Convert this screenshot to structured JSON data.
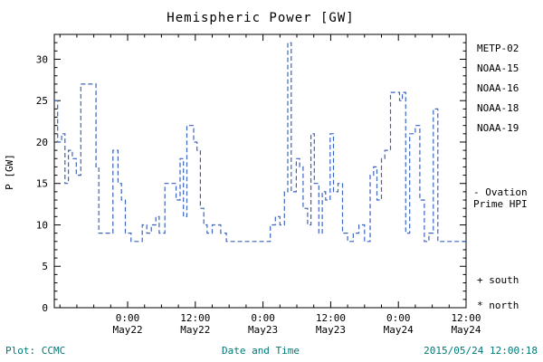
{
  "title": "Hemispheric Power [GW]",
  "footer": {
    "left": "Plot: CCMC",
    "right": "2015/05/24 12:00:18"
  },
  "chart_data": {
    "type": "line",
    "step": "after",
    "dashed": true,
    "title": "Hemispheric Power [GW]",
    "xlabel": "Date and Time",
    "ylabel": "P [GW]",
    "ylim": [
      0,
      33
    ],
    "yticks": [
      0,
      5,
      10,
      15,
      20,
      25,
      30
    ],
    "xlim": [
      -13,
      60
    ],
    "x_unit": "hours from 2015-05-22 00:00",
    "xticks": [
      {
        "h": 0,
        "time": "0:00",
        "date": "May22"
      },
      {
        "h": 12,
        "time": "12:00",
        "date": "May22"
      },
      {
        "h": 24,
        "time": "0:00",
        "date": "May23"
      },
      {
        "h": 36,
        "time": "12:00",
        "date": "May23"
      },
      {
        "h": 48,
        "time": "0:00",
        "date": "May24"
      },
      {
        "h": 60,
        "time": "12:00",
        "date": "May24"
      }
    ],
    "line_color": "#3b63c0",
    "grid": false,
    "legend_position": "right",
    "series": [
      {
        "name": "Ovation Prime HPI",
        "points": [
          [
            -13,
            25
          ],
          [
            -12.4,
            20
          ],
          [
            -11.7,
            21
          ],
          [
            -11.1,
            15
          ],
          [
            -10.5,
            19
          ],
          [
            -9.8,
            18
          ],
          [
            -9.1,
            16
          ],
          [
            -8.3,
            27
          ],
          [
            -5.6,
            17
          ],
          [
            -5.1,
            9
          ],
          [
            -3.1,
            9
          ],
          [
            -2.6,
            19
          ],
          [
            -1.7,
            15
          ],
          [
            -1.1,
            13
          ],
          [
            -0.4,
            9
          ],
          [
            0.6,
            8
          ],
          [
            2.6,
            10
          ],
          [
            3.4,
            9
          ],
          [
            4.2,
            10
          ],
          [
            5,
            11
          ],
          [
            5.6,
            9
          ],
          [
            6.6,
            15
          ],
          [
            8.6,
            13
          ],
          [
            9.3,
            18
          ],
          [
            9.9,
            11
          ],
          [
            10.5,
            22
          ],
          [
            11.7,
            20
          ],
          [
            12.3,
            19
          ],
          [
            12.9,
            12
          ],
          [
            13.5,
            10
          ],
          [
            14.1,
            9
          ],
          [
            15,
            10
          ],
          [
            16.5,
            9
          ],
          [
            17.5,
            8
          ],
          [
            24.5,
            8
          ],
          [
            25.3,
            10
          ],
          [
            26.2,
            11
          ],
          [
            27,
            10
          ],
          [
            27.8,
            14
          ],
          [
            28.4,
            32
          ],
          [
            29,
            14
          ],
          [
            29.9,
            18
          ],
          [
            30.5,
            17
          ],
          [
            31.1,
            12
          ],
          [
            31.9,
            10
          ],
          [
            32.5,
            21
          ],
          [
            33.1,
            15
          ],
          [
            33.9,
            9
          ],
          [
            34.5,
            14
          ],
          [
            35.1,
            13
          ],
          [
            35.9,
            21
          ],
          [
            36.5,
            14
          ],
          [
            37.3,
            15
          ],
          [
            38.1,
            9
          ],
          [
            39,
            8
          ],
          [
            40,
            9
          ],
          [
            41,
            10
          ],
          [
            42,
            8
          ],
          [
            43,
            16
          ],
          [
            43.6,
            17
          ],
          [
            44.2,
            13
          ],
          [
            45,
            18
          ],
          [
            45.6,
            19
          ],
          [
            46.6,
            26
          ],
          [
            48.2,
            25
          ],
          [
            48.7,
            26
          ],
          [
            49.3,
            9
          ],
          [
            50,
            21
          ],
          [
            51,
            22
          ],
          [
            51.8,
            13
          ],
          [
            52.6,
            8
          ],
          [
            53.4,
            9
          ],
          [
            54.2,
            24
          ],
          [
            55,
            8
          ],
          [
            60,
            8
          ]
        ]
      }
    ]
  },
  "legend": {
    "satellites": [
      {
        "label": "METP-02",
        "color": "#3a3a3a"
      },
      {
        "label": "NOAA-15",
        "color": "#2436d9"
      },
      {
        "label": "NOAA-16",
        "color": "#19c2e8"
      },
      {
        "label": "NOAA-18",
        "color": "#52d184"
      },
      {
        "label": "NOAA-19",
        "color": "#ffa040"
      }
    ],
    "ovation_line1": "- Ovation",
    "ovation_line2": "Prime HPI",
    "ovation_color": "#2436d9",
    "south_label": "+ south",
    "north_label": "* north"
  }
}
